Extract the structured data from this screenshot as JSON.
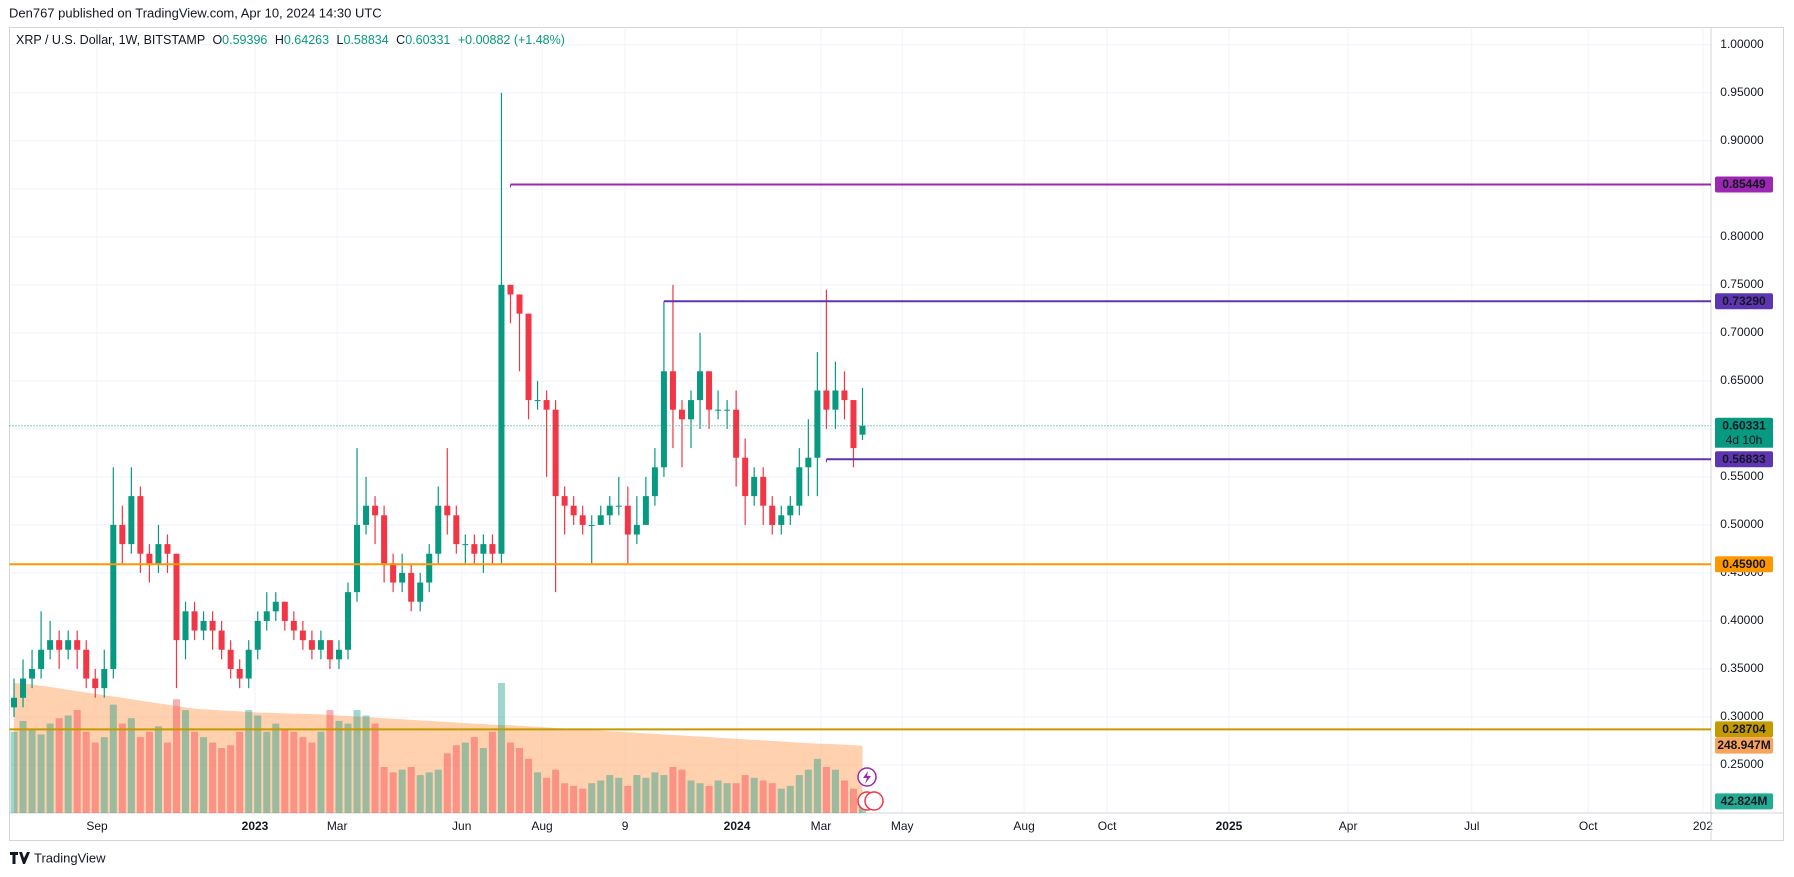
{
  "header": {
    "publisher": "Den767 published on TradingView.com, Apr 10, 2024 14:30 UTC",
    "symbol": "XRP / U.S. Dollar, 1W, BITSTAMP",
    "ohlc_labels": [
      "O",
      "H",
      "L",
      "C"
    ],
    "change": "+0.00882 (+1.48%)"
  },
  "footer": {
    "brand": "TradingView"
  },
  "chart_data": {
    "type": "candlestick",
    "open": [
      0.31,
      0.32,
      0.34,
      0.35,
      0.37,
      0.38,
      0.37,
      0.38,
      0.37,
      0.34,
      0.33,
      0.35,
      0.5,
      0.48,
      0.53,
      0.47,
      0.46,
      0.48,
      0.47,
      0.38,
      0.41,
      0.39,
      0.4,
      0.39,
      0.37,
      0.35,
      0.34,
      0.37,
      0.4,
      0.41,
      0.42,
      0.4,
      0.39,
      0.38,
      0.37,
      0.38,
      0.36,
      0.37,
      0.43,
      0.5,
      0.52,
      0.51,
      0.46,
      0.44,
      0.45,
      0.42,
      0.44,
      0.47,
      0.52,
      0.51,
      0.48,
      0.48,
      0.47,
      0.48,
      0.47,
      0.75,
      0.74,
      0.72,
      0.63,
      0.63,
      0.62,
      0.53,
      0.52,
      0.51,
      0.5,
      0.5,
      0.51,
      0.52,
      0.52,
      0.49,
      0.5,
      0.53,
      0.56,
      0.66,
      0.62,
      0.61,
      0.63,
      0.66,
      0.62,
      0.62,
      0.62,
      0.57,
      0.53,
      0.55,
      0.52,
      0.5,
      0.51,
      0.52,
      0.56,
      0.57,
      0.64,
      0.62,
      0.64,
      0.63,
      0.59396
    ],
    "high": [
      0.34,
      0.36,
      0.37,
      0.41,
      0.4,
      0.39,
      0.39,
      0.39,
      0.38,
      0.35,
      0.37,
      0.56,
      0.52,
      0.56,
      0.54,
      0.48,
      0.5,
      0.49,
      0.47,
      0.42,
      0.42,
      0.41,
      0.41,
      0.4,
      0.38,
      0.36,
      0.38,
      0.41,
      0.43,
      0.43,
      0.42,
      0.41,
      0.4,
      0.39,
      0.39,
      0.38,
      0.38,
      0.44,
      0.58,
      0.55,
      0.53,
      0.52,
      0.47,
      0.47,
      0.46,
      0.45,
      0.48,
      0.54,
      0.58,
      0.52,
      0.49,
      0.49,
      0.49,
      0.49,
      0.95,
      0.75,
      0.74,
      0.72,
      0.65,
      0.64,
      0.63,
      0.54,
      0.53,
      0.52,
      0.51,
      0.52,
      0.53,
      0.55,
      0.54,
      0.53,
      0.55,
      0.58,
      0.73,
      0.75,
      0.63,
      0.64,
      0.7,
      0.66,
      0.64,
      0.63,
      0.64,
      0.59,
      0.56,
      0.56,
      0.53,
      0.52,
      0.53,
      0.58,
      0.61,
      0.68,
      0.745,
      0.67,
      0.66,
      0.63,
      0.64263
    ],
    "low": [
      0.3,
      0.31,
      0.33,
      0.34,
      0.36,
      0.35,
      0.36,
      0.35,
      0.33,
      0.32,
      0.32,
      0.34,
      0.46,
      0.47,
      0.45,
      0.44,
      0.45,
      0.45,
      0.33,
      0.36,
      0.38,
      0.38,
      0.37,
      0.36,
      0.34,
      0.33,
      0.33,
      0.36,
      0.39,
      0.4,
      0.39,
      0.38,
      0.37,
      0.36,
      0.36,
      0.35,
      0.35,
      0.36,
      0.42,
      0.49,
      0.48,
      0.44,
      0.43,
      0.43,
      0.41,
      0.41,
      0.43,
      0.46,
      0.49,
      0.47,
      0.46,
      0.46,
      0.45,
      0.46,
      0.46,
      0.71,
      0.66,
      0.61,
      0.62,
      0.55,
      0.43,
      0.49,
      0.5,
      0.49,
      0.46,
      0.5,
      0.5,
      0.51,
      0.46,
      0.48,
      0.5,
      0.52,
      0.55,
      0.58,
      0.56,
      0.58,
      0.6,
      0.6,
      0.61,
      0.6,
      0.54,
      0.5,
      0.52,
      0.5,
      0.49,
      0.49,
      0.5,
      0.51,
      0.53,
      0.53,
      0.6,
      0.6,
      0.61,
      0.56,
      0.58834
    ],
    "close": [
      0.32,
      0.34,
      0.35,
      0.37,
      0.38,
      0.37,
      0.38,
      0.37,
      0.34,
      0.33,
      0.35,
      0.5,
      0.48,
      0.53,
      0.47,
      0.46,
      0.48,
      0.47,
      0.38,
      0.41,
      0.39,
      0.4,
      0.39,
      0.37,
      0.35,
      0.34,
      0.37,
      0.4,
      0.41,
      0.42,
      0.4,
      0.39,
      0.38,
      0.37,
      0.38,
      0.36,
      0.37,
      0.43,
      0.5,
      0.52,
      0.51,
      0.46,
      0.44,
      0.45,
      0.42,
      0.44,
      0.47,
      0.52,
      0.51,
      0.48,
      0.48,
      0.47,
      0.48,
      0.47,
      0.75,
      0.74,
      0.72,
      0.63,
      0.63,
      0.62,
      0.53,
      0.52,
      0.51,
      0.5,
      0.5,
      0.51,
      0.52,
      0.52,
      0.49,
      0.5,
      0.53,
      0.56,
      0.66,
      0.62,
      0.61,
      0.63,
      0.66,
      0.62,
      0.62,
      0.62,
      0.57,
      0.53,
      0.55,
      0.52,
      0.5,
      0.51,
      0.52,
      0.56,
      0.57,
      0.64,
      0.62,
      0.64,
      0.63,
      0.58,
      0.60331
    ],
    "volume": [
      300,
      340,
      310,
      290,
      330,
      350,
      360,
      380,
      300,
      260,
      280,
      400,
      330,
      350,
      280,
      300,
      320,
      260,
      420,
      380,
      300,
      280,
      260,
      240,
      250,
      300,
      380,
      360,
      300,
      330,
      310,
      300,
      280,
      260,
      300,
      380,
      340,
      330,
      380,
      360,
      330,
      170,
      150,
      160,
      170,
      140,
      150,
      160,
      220,
      250,
      260,
      280,
      240,
      300,
      480,
      260,
      240,
      200,
      150,
      130,
      160,
      110,
      100,
      90,
      110,
      120,
      140,
      130,
      100,
      140,
      130,
      150,
      140,
      170,
      160,
      120,
      110,
      100,
      120,
      110,
      110,
      140,
      130,
      120,
      110,
      90,
      100,
      140,
      160,
      200,
      170,
      160,
      120,
      90,
      42.824
    ],
    "volume_ma": [
      480,
      478,
      475,
      470,
      465,
      460,
      455,
      450,
      445,
      440,
      435,
      430,
      425,
      420,
      415,
      410,
      405,
      400,
      395,
      390,
      385,
      383,
      381,
      379,
      377,
      375,
      373,
      371,
      370,
      369,
      368,
      367,
      366,
      365,
      364,
      362,
      360,
      358,
      356,
      354,
      352,
      350,
      348,
      346,
      344,
      342,
      340,
      338,
      336,
      334,
      332,
      330,
      328,
      326,
      325,
      324,
      322,
      320,
      318,
      316,
      314,
      312,
      310,
      308,
      306,
      304,
      302,
      300,
      298,
      296,
      294,
      292,
      290,
      288,
      286,
      284,
      282,
      280,
      278,
      276,
      274,
      272,
      270,
      268,
      266,
      264,
      262,
      260,
      258,
      256,
      255,
      254,
      252,
      250,
      248.947
    ],
    "up_color": "#089981",
    "down_color": "#f23645",
    "volume_ma_color": "#ffb27a",
    "xlim": [
      -0.5,
      188
    ],
    "ylim": [
      0.2,
      1.018
    ],
    "volume_lim": [
      0,
      2900
    ],
    "xticks": [
      {
        "value": 9.2,
        "label": "Sep"
      },
      {
        "value": 26.7,
        "label": "2023"
      },
      {
        "value": 35.8,
        "label": "Mar"
      },
      {
        "value": 49.6,
        "label": "Jun"
      },
      {
        "value": 58.5,
        "label": "Aug"
      },
      {
        "value": 67.7,
        "label": "9"
      },
      {
        "value": 80.1,
        "label": "2024"
      },
      {
        "value": 89.4,
        "label": "Mar"
      },
      {
        "value": 98.4,
        "label": "May"
      },
      {
        "value": 111.9,
        "label": "Aug"
      },
      {
        "value": 121.1,
        "label": "Oct"
      },
      {
        "value": 134.6,
        "label": "2025"
      },
      {
        "value": 147.8,
        "label": "Apr"
      },
      {
        "value": 161.5,
        "label": "Jul"
      },
      {
        "value": 174.4,
        "label": "Oct"
      },
      {
        "value": 187.1,
        "label": "202"
      }
    ],
    "yticks": [
      {
        "value": 0.25,
        "label": "0.25000"
      },
      {
        "value": 0.3,
        "label": "0.30000"
      },
      {
        "value": 0.35,
        "label": "0.35000"
      },
      {
        "value": 0.4,
        "label": "0.40000"
      },
      {
        "value": 0.45,
        "label": "0.45000"
      },
      {
        "value": 0.5,
        "label": "0.50000"
      },
      {
        "value": 0.55,
        "label": "0.55000"
      },
      {
        "value": 0.6,
        "label": "0.60000"
      },
      {
        "value": 0.65,
        "label": "0.65000"
      },
      {
        "value": 0.7,
        "label": "0.70000"
      },
      {
        "value": 0.75,
        "label": "0.75000"
      },
      {
        "value": 0.8,
        "label": "0.80000"
      },
      {
        "value": 0.85,
        "label": "0.85000"
      },
      {
        "value": 0.9,
        "label": "0.90000"
      },
      {
        "value": 0.95,
        "label": "0.95000"
      },
      {
        "value": 1.0,
        "label": "1.00000"
      }
    ],
    "grid": true,
    "levels": [
      {
        "value": 0.85449,
        "label": "0.85449",
        "color": "#9c27b0",
        "start": 55
      },
      {
        "value": 0.7329,
        "label": "0.73290",
        "color": "#5e35b1",
        "start": 72
      },
      {
        "value": 0.56833,
        "label": "0.56833",
        "color": "#5e35b1",
        "start": 90
      },
      {
        "value": 0.459,
        "label": "0.45900",
        "color": "#ff9800"
      },
      {
        "value": 0.28704,
        "label": "0.28704",
        "color": "#c49a00"
      }
    ],
    "last_price": {
      "value": 0.60331,
      "label": "0.60331",
      "countdown": "4d 10h",
      "color": "#089981"
    },
    "volume_tags": [
      {
        "value": 248.947,
        "label": "248.947M",
        "color": "#f7a35c"
      },
      {
        "value": 42.824,
        "label": "42.824M",
        "color": "#22ab94"
      }
    ]
  }
}
